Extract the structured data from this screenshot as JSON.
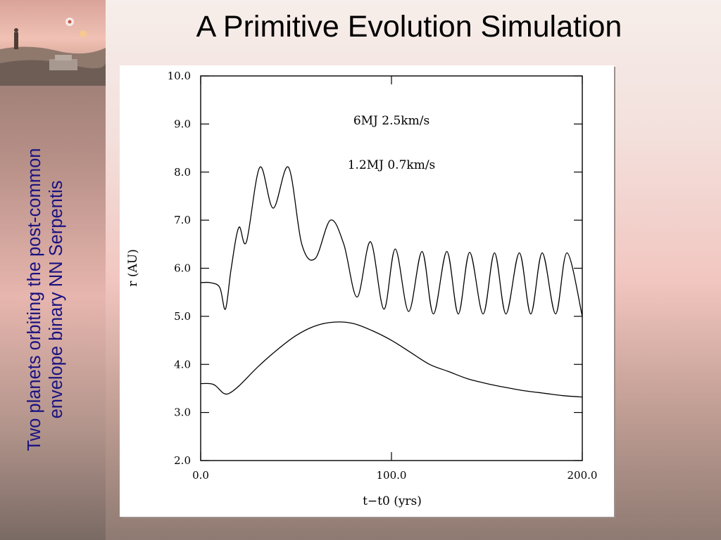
{
  "slide": {
    "title": "A Primitive Evolution Simulation",
    "side_caption_line1": "Two planets orbiting the post-common",
    "side_caption_line2": "envelope binary NN Serpentis"
  },
  "colors": {
    "caption": "#1a1280",
    "plot_line": "#000000",
    "panel": "#ffffff"
  },
  "chart_data": {
    "type": "line",
    "title": "",
    "xlabel": "t−t0 (yrs)",
    "ylabel": "r (AU)",
    "xlim": [
      0,
      200
    ],
    "ylim": [
      2,
      10
    ],
    "x_ticks": [
      0,
      100,
      200
    ],
    "x_tick_labels": [
      "0.0",
      "100.0",
      "200.0"
    ],
    "y_ticks": [
      2,
      3,
      4,
      5,
      6,
      7,
      8,
      9,
      10
    ],
    "y_tick_labels": [
      "2.0",
      "3.0",
      "4.0",
      "5.0",
      "6.0",
      "7.0",
      "8.0",
      "9.0",
      "10.0"
    ],
    "grid": false,
    "legend": "none",
    "annotations": [
      {
        "text": "6MJ 2.5km/s",
        "x": 100,
        "y": 8.99
      },
      {
        "text": "1.2MJ 0.7km/s",
        "x": 100,
        "y": 8.07
      }
    ],
    "series": [
      {
        "x": [
          0,
          5,
          10,
          13,
          16,
          20,
          24,
          31,
          38,
          46,
          53,
          60,
          68,
          75,
          82,
          89,
          96,
          102,
          109,
          116,
          122,
          129,
          135,
          141,
          148,
          154,
          160,
          167,
          173,
          179,
          186,
          192,
          200
        ],
        "y": [
          5.7,
          5.7,
          5.6,
          5.15,
          6.0,
          6.85,
          6.55,
          8.1,
          7.25,
          8.1,
          6.5,
          6.2,
          7.0,
          6.5,
          5.4,
          6.55,
          5.15,
          6.4,
          5.1,
          6.35,
          5.05,
          6.35,
          5.05,
          6.33,
          5.05,
          6.32,
          5.05,
          6.32,
          5.05,
          6.32,
          5.05,
          6.32,
          5.0
        ]
      },
      {
        "x": [
          0,
          5,
          8,
          12,
          15,
          20,
          30,
          40,
          50,
          60,
          70,
          80,
          90,
          100,
          110,
          120,
          130,
          140,
          150,
          160,
          170,
          180,
          190,
          200
        ],
        "y": [
          3.6,
          3.6,
          3.55,
          3.4,
          3.4,
          3.55,
          3.95,
          4.3,
          4.6,
          4.8,
          4.88,
          4.85,
          4.7,
          4.5,
          4.25,
          4.0,
          3.85,
          3.7,
          3.6,
          3.52,
          3.45,
          3.4,
          3.35,
          3.32
        ]
      }
    ]
  }
}
